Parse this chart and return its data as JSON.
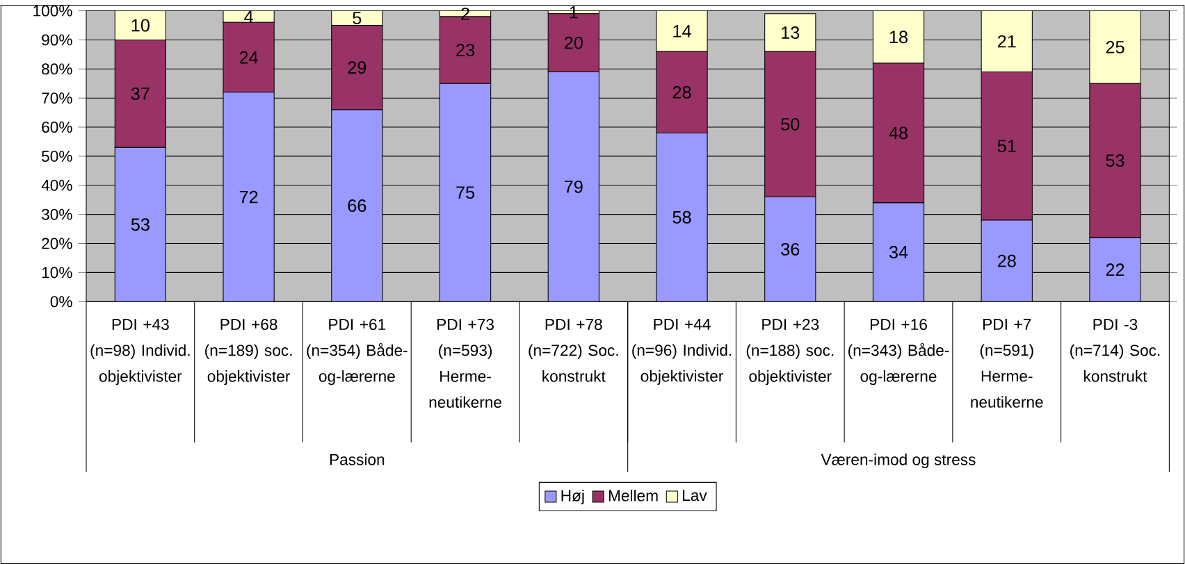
{
  "chart_data": {
    "type": "bar",
    "stacked": true,
    "categories": [
      "PDI +43 (n=98) Individ. objektivister",
      "PDI +68 (n=189) soc. objektivister",
      "PDI +61 (n=354) Både-og-lærerne",
      "PDI +73 (n=593) Herme-neutikerne",
      "PDI +78 (n=722) Soc. konstrukt",
      "PDI +44 (n=96) Individ. objektivister",
      "PDI +23 (n=188) soc. objektivister",
      "PDI +16 (n=343) Både-og-lærerne",
      "PDI +7 (n=591) Herme-neutikerne",
      "PDI -3 (n=714) Soc. konstrukt"
    ],
    "series": [
      {
        "name": "Høj",
        "color": "#9999ff",
        "values": [
          53,
          72,
          66,
          75,
          79,
          58,
          36,
          34,
          28,
          22
        ]
      },
      {
        "name": "Mellem",
        "color": "#993366",
        "values": [
          37,
          24,
          29,
          23,
          20,
          28,
          50,
          48,
          51,
          53
        ]
      },
      {
        "name": "Lav",
        "color": "#ffffcc",
        "values": [
          10,
          4,
          5,
          2,
          1,
          14,
          13,
          18,
          21,
          25
        ]
      }
    ],
    "ylim": [
      0,
      100
    ],
    "yticks": [
      {
        "value": 0,
        "label": "0%"
      },
      {
        "value": 10,
        "label": "10%"
      },
      {
        "value": 20,
        "label": "20%"
      },
      {
        "value": 30,
        "label": "30%"
      },
      {
        "value": 40,
        "label": "40%"
      },
      {
        "value": 50,
        "label": "50%"
      },
      {
        "value": 60,
        "label": "60%"
      },
      {
        "value": 70,
        "label": "70%"
      },
      {
        "value": 80,
        "label": "80%"
      },
      {
        "value": 90,
        "label": "90%"
      },
      {
        "value": 100,
        "label": "100%"
      }
    ],
    "annotations": [
      "Passion",
      "Væren-imod og stress"
    ],
    "data_labels": true,
    "grid": "y",
    "legend": "bottom"
  }
}
